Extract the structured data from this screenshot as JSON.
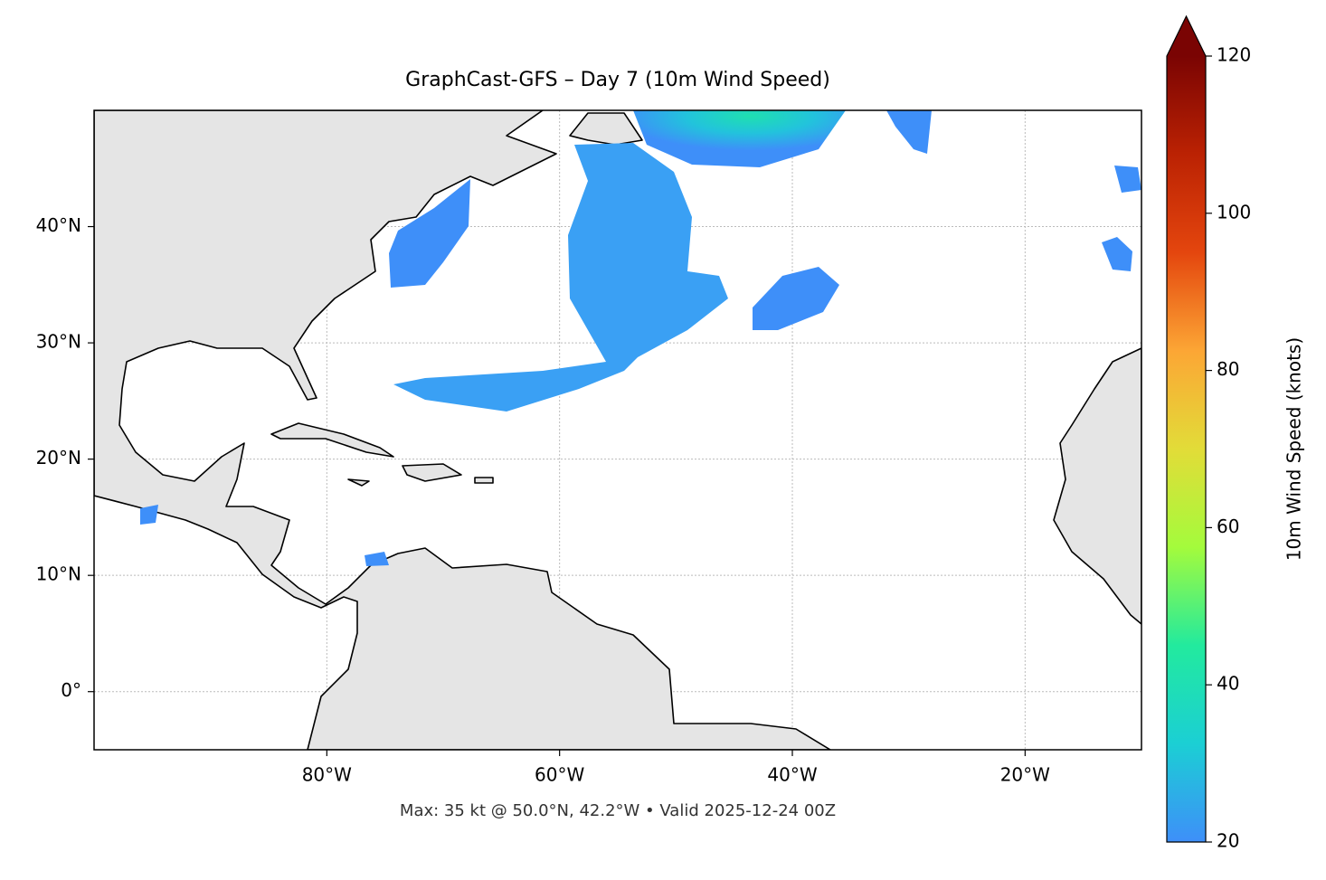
{
  "chart_data": {
    "type": "map",
    "title": "GraphCast-GFS – Day 7 (10m Wind Speed)",
    "footer": "Max: 35 kt @ 50.0°N, 42.2°W • Valid 2025-12-24 00Z",
    "xlim": [
      -100,
      -10
    ],
    "ylim": [
      -5,
      50
    ],
    "xticks": [
      {
        "value": -80,
        "label": "80°W"
      },
      {
        "value": -60,
        "label": "60°W"
      },
      {
        "value": -40,
        "label": "40°W"
      },
      {
        "value": -20,
        "label": "20°W"
      }
    ],
    "yticks": [
      {
        "value": 0,
        "label": "0°"
      },
      {
        "value": 10,
        "label": "10°N"
      },
      {
        "value": 20,
        "label": "20°N"
      },
      {
        "value": 30,
        "label": "30°N"
      },
      {
        "value": 40,
        "label": "40°N"
      }
    ],
    "grid": true,
    "colorbar": {
      "label": "10m Wind Speed (knots)",
      "lim": [
        20,
        120
      ],
      "ticks": [
        20,
        40,
        60,
        80,
        100,
        120
      ],
      "colors": [
        "#3e8ff9",
        "#1bcfd4",
        "#22ea9e",
        "#a4fb3c",
        "#e2dc38",
        "#fca635",
        "#e4460e",
        "#bb2203",
        "#7a0403"
      ]
    }
  }
}
